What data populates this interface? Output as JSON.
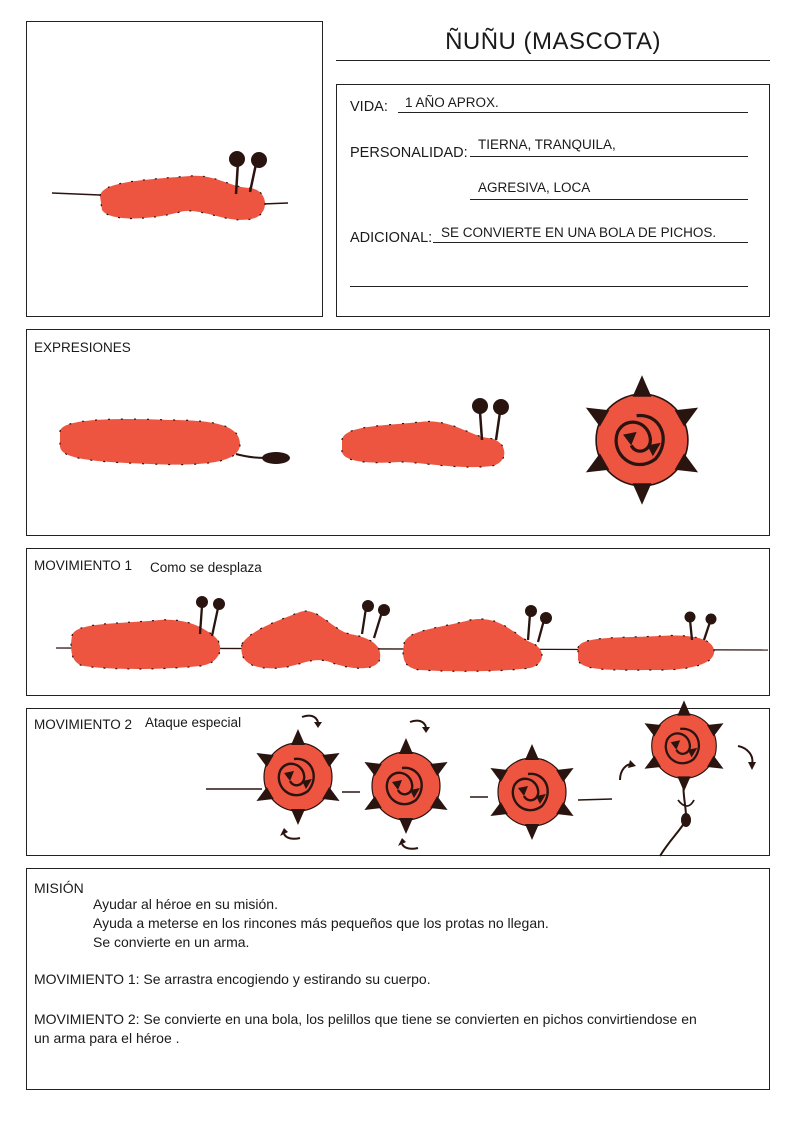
{
  "title": "ÑUÑU (MASCOTA)",
  "info": {
    "vida_label": "VIDA:",
    "vida_value": "1 AÑO APROX.",
    "personalidad_label": "PERSONALIDAD:",
    "personalidad_value_1": "TIERNA, TRANQUILA,",
    "personalidad_value_2": "AGRESIVA, LOCA",
    "adicional_label": "ADICIONAL:",
    "adicional_value": "SE CONVIERTE EN UNA BOLA DE PICHOS."
  },
  "expresiones": {
    "label": "EXPRESIONES"
  },
  "movimiento1": {
    "label": "MOVIMIENTO 1",
    "caption": "Como se desplaza"
  },
  "movimiento2": {
    "label": "MOVIMIENTO 2",
    "caption": "Ataque especial"
  },
  "mision": {
    "label": "MISIÓN",
    "lines": [
      "Ayudar al héroe en su misión.",
      "Ayuda a meterse en los rincones más pequeños que los protas no llegan.",
      "Se convierte en un arma."
    ],
    "mov1": "MOVIMIENTO 1: Se arrastra encogiendo y estirando su cuerpo.",
    "mov2_line1": "MOVIMIENTO 2: Se convierte en una bola, los pelillos que tiene se convierten en pichos convirtiendose en",
    "mov2_line2": "un arma para el héroe ."
  },
  "colors": {
    "body": "#ee5541",
    "ink": "#2a1410",
    "frame": "#222222"
  }
}
